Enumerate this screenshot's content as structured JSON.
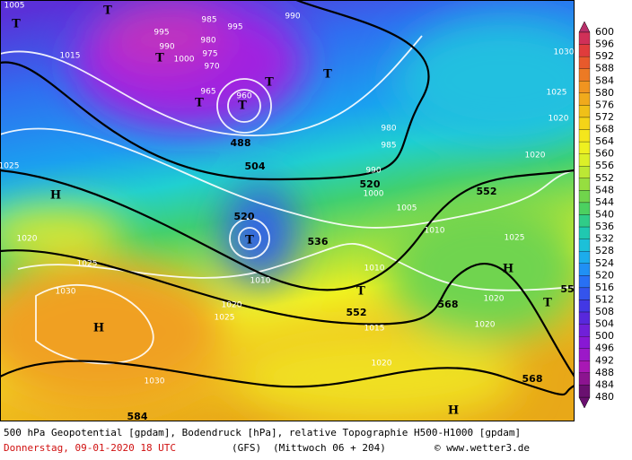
{
  "map": {
    "labels_white": [
      "1005",
      "985",
      "995",
      "990",
      "980",
      "975",
      "970",
      "965",
      "960",
      "1000",
      "1015",
      "1025",
      "1020",
      "1025",
      "1030",
      "1030",
      "1025",
      "1020",
      "1010",
      "1005",
      "1010",
      "1010",
      "1015",
      "1020",
      "1020",
      "1020",
      "1025",
      "1025",
      "1020",
      "1020",
      "1030",
      "990",
      "980",
      "985",
      "990",
      "1000",
      "995"
    ],
    "labels_black": [
      "488",
      "504",
      "520",
      "520",
      "536",
      "552",
      "552",
      "568",
      "568",
      "584",
      "55"
    ],
    "highs_lows": [
      "T",
      "T",
      "T",
      "T",
      "T",
      "T",
      "T",
      "T",
      "T",
      "T",
      "H",
      "H",
      "H",
      "H"
    ]
  },
  "legend": {
    "values": [
      600,
      596,
      592,
      588,
      584,
      580,
      576,
      572,
      568,
      564,
      560,
      556,
      552,
      548,
      544,
      540,
      536,
      532,
      528,
      524,
      520,
      516,
      512,
      508,
      504,
      500,
      496,
      492,
      488,
      484,
      480
    ],
    "colors": [
      "#b8306a",
      "#d03058",
      "#e03c3c",
      "#e85a2c",
      "#ec7a24",
      "#f09420",
      "#f0aa1c",
      "#f0c018",
      "#f4d418",
      "#f4e61c",
      "#eef020",
      "#dcf028",
      "#bce834",
      "#96de40",
      "#70d44c",
      "#4cd060",
      "#30cc88",
      "#20c8b0",
      "#1cc0d8",
      "#1cacec",
      "#2090f4",
      "#2870f4",
      "#3454ec",
      "#4238e4",
      "#5828dc",
      "#7020d8",
      "#8818d4",
      "#9c18c8",
      "#a818b4",
      "#8c1490",
      "#6a1070"
    ]
  },
  "footer": {
    "line1": "500 hPa Geopotential [gpdam], Bodendruck [hPa], relative Topographie H500-H1000 [gpdam]",
    "date": "Donnerstag, 09-01-2020  18 UTC",
    "model": "(GFS)",
    "run": "(Mittwoch 06 + 204)",
    "credit": "© www.wetter3.de"
  }
}
